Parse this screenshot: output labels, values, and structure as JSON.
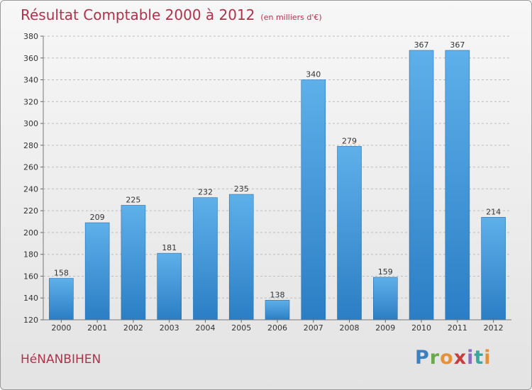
{
  "header": {
    "title": "Résultat Comptable 2000 à 2012",
    "subtitle": "(en milliers d'€)"
  },
  "footer": {
    "town": "HéNANBIHEN",
    "logo": "Proxiti"
  },
  "colors": {
    "title": "#b0324a",
    "bar_light": "#5eb0ea",
    "bar_dark": "#2b7ec4"
  },
  "chart_data": {
    "type": "bar",
    "categories": [
      "2000",
      "2001",
      "2002",
      "2003",
      "2004",
      "2005",
      "2006",
      "2007",
      "2008",
      "2009",
      "2010",
      "2011",
      "2012"
    ],
    "values": [
      158,
      209,
      225,
      181,
      232,
      235,
      138,
      340,
      279,
      159,
      367,
      367,
      214
    ],
    "title": "Résultat Comptable 2000 à 2012",
    "subtitle": "(en milliers d'€)",
    "ylim": [
      120,
      380
    ],
    "yticks": [
      120,
      140,
      160,
      180,
      200,
      220,
      240,
      260,
      280,
      300,
      320,
      340,
      360,
      380
    ],
    "grid": "horizontal-dashed",
    "data_labels": true
  }
}
